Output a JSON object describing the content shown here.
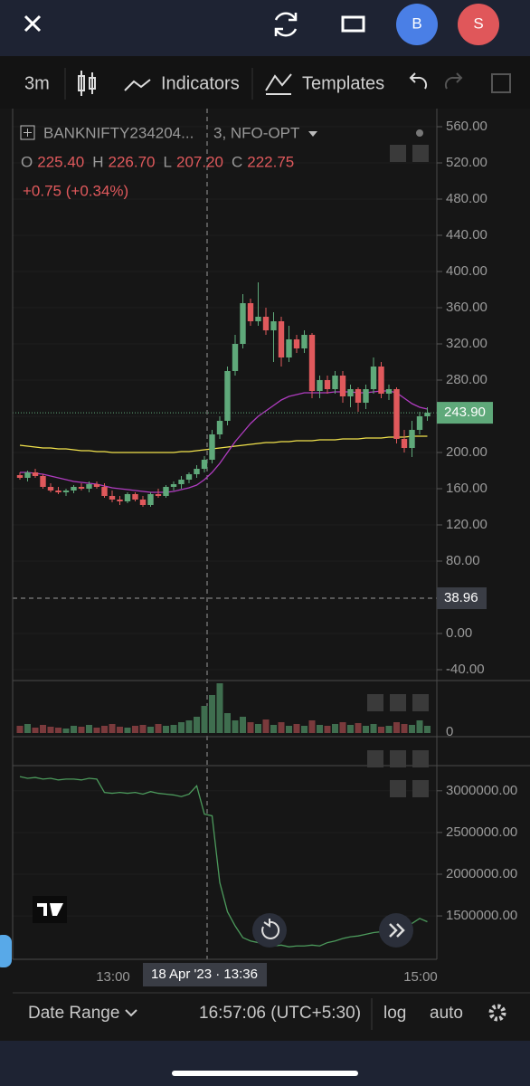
{
  "top_bar": {
    "avatars": [
      "B",
      "S"
    ]
  },
  "toolbar": {
    "interval": "3m",
    "indicators": "Indicators",
    "templates": "Templates"
  },
  "chart": {
    "type": "candlestick",
    "symbol": "BANKNIFTY234204...",
    "resolution": "3, NFO-OPT",
    "ohlc": [
      {
        "key": "O",
        "value": "225.40"
      },
      {
        "key": "H",
        "value": "226.70"
      },
      {
        "key": "L",
        "value": "207.20"
      },
      {
        "key": "C",
        "value": "222.75"
      }
    ],
    "change": "+0.75 (+0.34%)",
    "ylim": [
      -50,
      580
    ],
    "yticks": [
      {
        "value": 560,
        "label": "560.00"
      },
      {
        "value": 520,
        "label": "520.00"
      },
      {
        "value": 480,
        "label": "480.00"
      },
      {
        "value": 440,
        "label": "440.00"
      },
      {
        "value": 400,
        "label": "400.00"
      },
      {
        "value": 360,
        "label": "360.00"
      },
      {
        "value": 320,
        "label": "320.00"
      },
      {
        "value": 280,
        "label": "280.00"
      },
      {
        "value": 240,
        "label": "240.00"
      },
      {
        "value": 200,
        "label": "200.00"
      },
      {
        "value": 160,
        "label": "160.00"
      },
      {
        "value": 120,
        "label": "120.00"
      },
      {
        "value": 80,
        "label": "80.00"
      },
      {
        "value": 0,
        "label": "0.00"
      },
      {
        "value": -40,
        "label": "-40.00"
      }
    ],
    "last_price": {
      "value": 243.9,
      "label": "243.90"
    },
    "crosshair_price": 38.96,
    "up_color": "#5fa97a",
    "down_color": "#e0595c",
    "candles": [
      {
        "o": 175,
        "h": 178,
        "l": 170,
        "c": 172
      },
      {
        "o": 172,
        "h": 180,
        "l": 168,
        "c": 178
      },
      {
        "o": 178,
        "h": 182,
        "l": 172,
        "c": 174
      },
      {
        "o": 174,
        "h": 176,
        "l": 160,
        "c": 162
      },
      {
        "o": 162,
        "h": 166,
        "l": 156,
        "c": 158
      },
      {
        "o": 158,
        "h": 162,
        "l": 154,
        "c": 156
      },
      {
        "o": 156,
        "h": 160,
        "l": 152,
        "c": 158
      },
      {
        "o": 158,
        "h": 164,
        "l": 155,
        "c": 162
      },
      {
        "o": 162,
        "h": 166,
        "l": 158,
        "c": 160
      },
      {
        "o": 160,
        "h": 168,
        "l": 156,
        "c": 165
      },
      {
        "o": 165,
        "h": 168,
        "l": 160,
        "c": 162
      },
      {
        "o": 162,
        "h": 166,
        "l": 150,
        "c": 152
      },
      {
        "o": 152,
        "h": 158,
        "l": 145,
        "c": 148
      },
      {
        "o": 148,
        "h": 152,
        "l": 142,
        "c": 146
      },
      {
        "o": 146,
        "h": 156,
        "l": 144,
        "c": 154
      },
      {
        "o": 154,
        "h": 156,
        "l": 146,
        "c": 148
      },
      {
        "o": 148,
        "h": 152,
        "l": 140,
        "c": 142
      },
      {
        "o": 142,
        "h": 156,
        "l": 140,
        "c": 154
      },
      {
        "o": 154,
        "h": 160,
        "l": 150,
        "c": 152
      },
      {
        "o": 152,
        "h": 164,
        "l": 150,
        "c": 162
      },
      {
        "o": 162,
        "h": 168,
        "l": 158,
        "c": 165
      },
      {
        "o": 165,
        "h": 174,
        "l": 160,
        "c": 170
      },
      {
        "o": 170,
        "h": 178,
        "l": 166,
        "c": 176
      },
      {
        "o": 176,
        "h": 186,
        "l": 172,
        "c": 182
      },
      {
        "o": 182,
        "h": 196,
        "l": 178,
        "c": 192
      },
      {
        "o": 192,
        "h": 225,
        "l": 188,
        "c": 220
      },
      {
        "o": 220,
        "h": 240,
        "l": 215,
        "c": 235
      },
      {
        "o": 235,
        "h": 295,
        "l": 230,
        "c": 290
      },
      {
        "o": 290,
        "h": 330,
        "l": 285,
        "c": 320
      },
      {
        "o": 320,
        "h": 375,
        "l": 315,
        "c": 365
      },
      {
        "o": 365,
        "h": 370,
        "l": 340,
        "c": 345
      },
      {
        "o": 345,
        "h": 388,
        "l": 340,
        "c": 350
      },
      {
        "o": 350,
        "h": 360,
        "l": 330,
        "c": 335
      },
      {
        "o": 335,
        "h": 355,
        "l": 300,
        "c": 345
      },
      {
        "o": 345,
        "h": 350,
        "l": 295,
        "c": 305
      },
      {
        "o": 305,
        "h": 340,
        "l": 300,
        "c": 325
      },
      {
        "o": 325,
        "h": 330,
        "l": 310,
        "c": 315
      },
      {
        "o": 315,
        "h": 335,
        "l": 310,
        "c": 330
      },
      {
        "o": 330,
        "h": 332,
        "l": 260,
        "c": 268
      },
      {
        "o": 268,
        "h": 285,
        "l": 260,
        "c": 280
      },
      {
        "o": 280,
        "h": 285,
        "l": 265,
        "c": 270
      },
      {
        "o": 270,
        "h": 290,
        "l": 265,
        "c": 285
      },
      {
        "o": 285,
        "h": 290,
        "l": 255,
        "c": 262
      },
      {
        "o": 262,
        "h": 275,
        "l": 250,
        "c": 270
      },
      {
        "o": 270,
        "h": 272,
        "l": 245,
        "c": 255
      },
      {
        "o": 255,
        "h": 275,
        "l": 248,
        "c": 270
      },
      {
        "o": 270,
        "h": 305,
        "l": 265,
        "c": 295
      },
      {
        "o": 295,
        "h": 300,
        "l": 260,
        "c": 265
      },
      {
        "o": 265,
        "h": 275,
        "l": 258,
        "c": 270
      },
      {
        "o": 270,
        "h": 272,
        "l": 210,
        "c": 215
      },
      {
        "o": 215,
        "h": 225,
        "l": 200,
        "c": 205
      },
      {
        "o": 205,
        "h": 235,
        "l": 195,
        "c": 225
      },
      {
        "o": 225,
        "h": 245,
        "l": 220,
        "c": 240
      },
      {
        "o": 240,
        "h": 250,
        "l": 235,
        "c": 244
      }
    ],
    "averages": [
      {
        "color": "#f2e34c",
        "values": [
          208,
          207,
          206,
          205,
          205,
          204,
          204,
          203,
          202,
          202,
          201,
          201,
          200,
          200,
          200,
          200,
          200,
          200,
          200,
          200,
          200,
          201,
          201,
          202,
          203,
          204,
          205,
          206,
          207,
          208,
          209,
          210,
          211,
          211,
          212,
          212,
          213,
          213,
          213,
          214,
          214,
          214,
          215,
          215,
          215,
          216,
          216,
          216,
          217,
          217,
          217,
          218,
          218,
          218
        ]
      },
      {
        "color": "#b03cc0",
        "values": [
          178,
          178,
          177,
          176,
          174,
          172,
          170,
          168,
          167,
          166,
          165,
          163,
          161,
          160,
          159,
          158,
          157,
          156,
          156,
          156,
          157,
          159,
          161,
          164,
          170,
          178,
          188,
          200,
          212,
          222,
          232,
          240,
          246,
          252,
          258,
          262,
          264,
          266,
          266,
          266,
          266,
          267,
          267,
          267,
          266,
          266,
          267,
          268,
          268,
          266,
          260,
          254,
          250,
          248
        ]
      }
    ],
    "volume": {
      "axis_label": "0",
      "values": [
        8,
        10,
        6,
        9,
        7,
        6,
        5,
        8,
        7,
        9,
        6,
        8,
        10,
        7,
        6,
        8,
        9,
        7,
        10,
        8,
        9,
        12,
        14,
        18,
        30,
        42,
        55,
        22,
        14,
        18,
        12,
        10,
        15,
        9,
        12,
        8,
        10,
        8,
        14,
        9,
        8,
        10,
        12,
        9,
        11,
        8,
        10,
        7,
        8,
        12,
        10,
        9,
        14,
        8
      ]
    },
    "indicator": {
      "color": "#4c9a5c",
      "ylim": [
        980000,
        3280000
      ],
      "yticks": [
        {
          "value": 3000000,
          "label": "3000000.00"
        },
        {
          "value": 2500000,
          "label": "2500000.00"
        },
        {
          "value": 2000000,
          "label": "2000000.00"
        },
        {
          "value": 1500000,
          "label": "1500000.00"
        }
      ],
      "values": [
        3170000,
        3150000,
        3160000,
        3140000,
        3150000,
        3130000,
        3140000,
        3140000,
        3130000,
        3150000,
        3140000,
        2980000,
        2970000,
        2980000,
        2970000,
        2980000,
        2960000,
        2990000,
        2970000,
        2960000,
        2950000,
        2930000,
        2960000,
        3060000,
        2720000,
        2700000,
        1900000,
        1550000,
        1380000,
        1240000,
        1200000,
        1180000,
        1150000,
        1140000,
        1150000,
        1130000,
        1140000,
        1140000,
        1150000,
        1140000,
        1180000,
        1200000,
        1230000,
        1250000,
        1260000,
        1280000,
        1300000,
        1310000,
        1290000,
        1320000,
        1380000,
        1410000,
        1470000,
        1430000
      ]
    },
    "time_labels": [
      "13:00",
      "15:00"
    ],
    "crosshair_time": "18 Apr '23 · 13:36"
  },
  "bottom_bar": {
    "date_range": "Date Range",
    "clock": "16:57:06 (UTC+5:30)",
    "log": "log",
    "auto": "auto"
  }
}
